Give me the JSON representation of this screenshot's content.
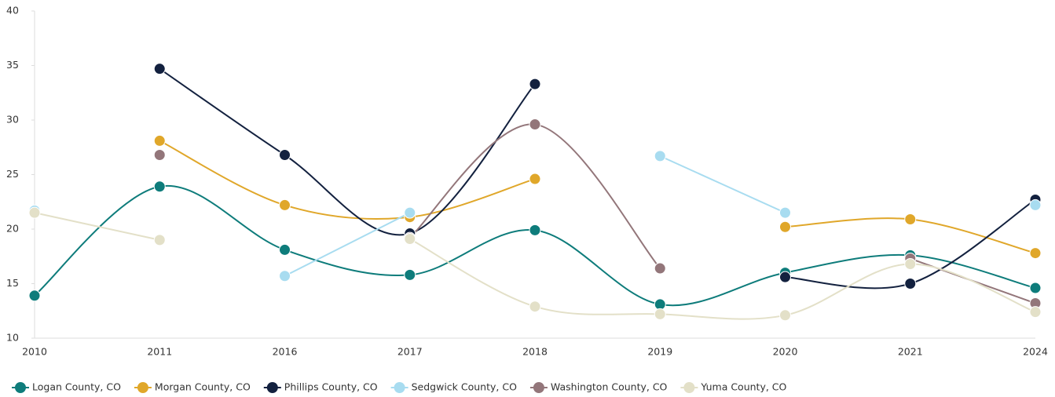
{
  "chart_data": {
    "type": "line",
    "categories": [
      "2010",
      "2011",
      "2016",
      "2017",
      "2018",
      "2019",
      "2020",
      "2021",
      "2024"
    ],
    "ylim": [
      10,
      40
    ],
    "yticks": [
      10,
      15,
      20,
      25,
      30,
      35,
      40
    ],
    "series": [
      {
        "name": "Logan County, CO",
        "color": "#0e7c7b",
        "values": [
          13.9,
          23.9,
          18.1,
          15.8,
          19.9,
          13.1,
          16.0,
          17.6,
          14.6
        ]
      },
      {
        "name": "Morgan County, CO",
        "color": "#e0a72a",
        "values": [
          null,
          28.1,
          22.2,
          21.1,
          24.6,
          null,
          20.2,
          20.9,
          17.8
        ]
      },
      {
        "name": "Phillips County, CO",
        "color": "#13213f",
        "values": [
          null,
          34.7,
          26.8,
          19.6,
          33.3,
          null,
          15.6,
          15.0,
          22.7
        ]
      },
      {
        "name": "Sedgwick County, CO",
        "color": "#a8dcf0",
        "values": [
          21.7,
          null,
          15.7,
          21.5,
          null,
          26.7,
          21.5,
          null,
          22.2
        ]
      },
      {
        "name": "Washington County, CO",
        "color": "#93767a",
        "values": [
          null,
          26.8,
          null,
          19.2,
          29.6,
          16.4,
          null,
          17.3,
          13.2
        ]
      },
      {
        "name": "Yuma County, CO",
        "color": "#e3e0c8",
        "values": [
          21.5,
          19.0,
          null,
          19.1,
          12.9,
          12.2,
          12.1,
          16.8,
          12.4
        ]
      }
    ]
  }
}
